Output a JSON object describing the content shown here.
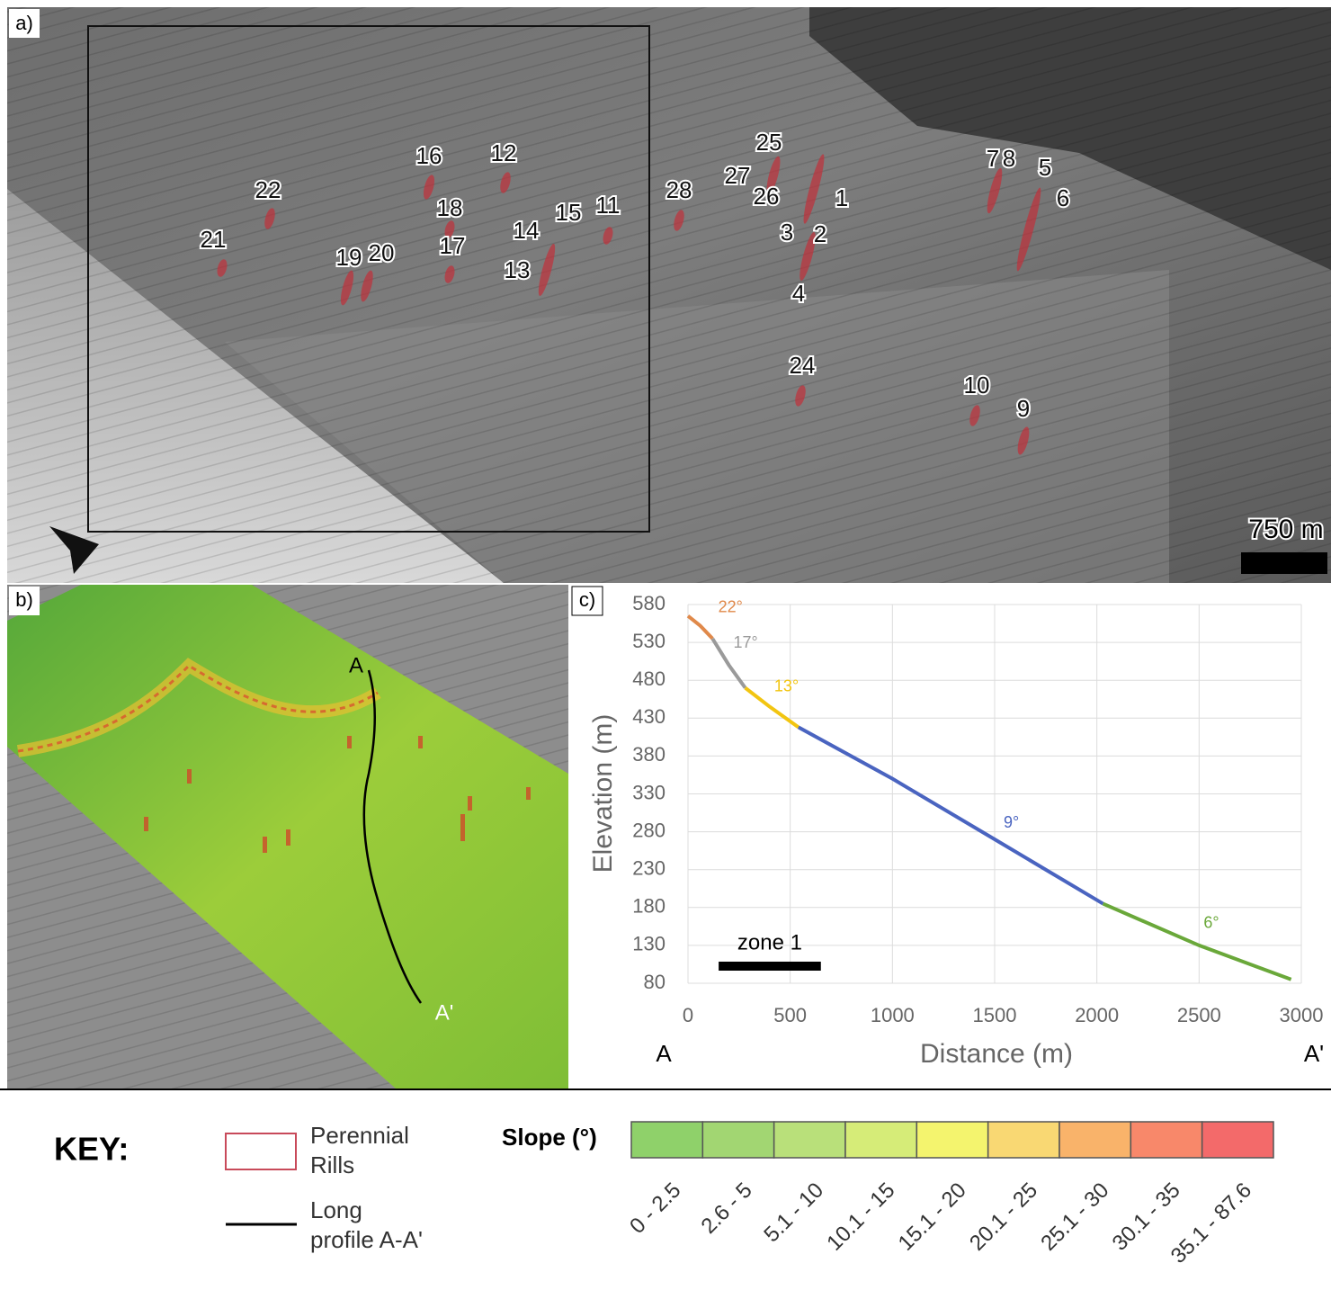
{
  "panel_a": {
    "label": "a)",
    "scale_bar": "750 m",
    "rill_labels": [
      "16",
      "12",
      "22",
      "21",
      "18",
      "17",
      "14",
      "15",
      "11",
      "13",
      "19",
      "20",
      "28",
      "25",
      "27",
      "26",
      "1",
      "3",
      "2",
      "4",
      "24",
      "7",
      "8",
      "5",
      "6",
      "10",
      "9"
    ]
  },
  "panel_b": {
    "label": "b)",
    "start": "A",
    "end": "A'"
  },
  "chart_data": {
    "type": "line",
    "panel_label": "c)",
    "x_label": "Distance (m)",
    "y_label": "Elevation (m)",
    "x_start_label": "A",
    "x_end_label": "A'",
    "xlim": [
      0,
      3000
    ],
    "ylim": [
      80,
      580
    ],
    "xticks": [
      0,
      500,
      1000,
      1500,
      2000,
      2500,
      3000
    ],
    "yticks": [
      80,
      130,
      180,
      230,
      280,
      330,
      380,
      430,
      480,
      530,
      580
    ],
    "grid": true,
    "series": [
      {
        "label": "22°",
        "color": "#e0894a",
        "x": [
          0,
          60,
          120
        ],
        "values": [
          565,
          552,
          535
        ]
      },
      {
        "label": "17°",
        "color": "#9a9a9a",
        "x": [
          120,
          200,
          280
        ],
        "values": [
          535,
          500,
          470
        ]
      },
      {
        "label": "13°",
        "color": "#f2c511",
        "x": [
          280,
          400,
          540
        ],
        "values": [
          470,
          445,
          418
        ]
      },
      {
        "label": "9°",
        "color": "#4a64c0",
        "x": [
          540,
          1000,
          1500,
          2030
        ],
        "values": [
          418,
          350,
          270,
          185
        ]
      },
      {
        "label": "6°",
        "color": "#6aa83a",
        "x": [
          2030,
          2500,
          2950
        ],
        "values": [
          185,
          130,
          85
        ]
      }
    ],
    "zone": {
      "label": "zone 1",
      "range": [
        150,
        650
      ]
    }
  },
  "key": {
    "title": "KEY:",
    "rills": "Perennial Rills",
    "profile": "Long profile A-A'",
    "slope_title": "Slope (°)",
    "classes": [
      {
        "label": "0 - 2.5",
        "color": "#8fd16a"
      },
      {
        "label": "2.6 - 5",
        "color": "#a2d672"
      },
      {
        "label": "5.1 - 10",
        "color": "#b9e07a"
      },
      {
        "label": "10.1 - 15",
        "color": "#d6ec78"
      },
      {
        "label": "15.1 - 20",
        "color": "#f4f46e"
      },
      {
        "label": "20.1 - 25",
        "color": "#f9d873"
      },
      {
        "label": "25.1 - 30",
        "color": "#f9b36a"
      },
      {
        "label": "30.1 - 35",
        "color": "#f8886a"
      },
      {
        "label": "35.1 - 87.6",
        "color": "#f36a6a"
      }
    ]
  }
}
